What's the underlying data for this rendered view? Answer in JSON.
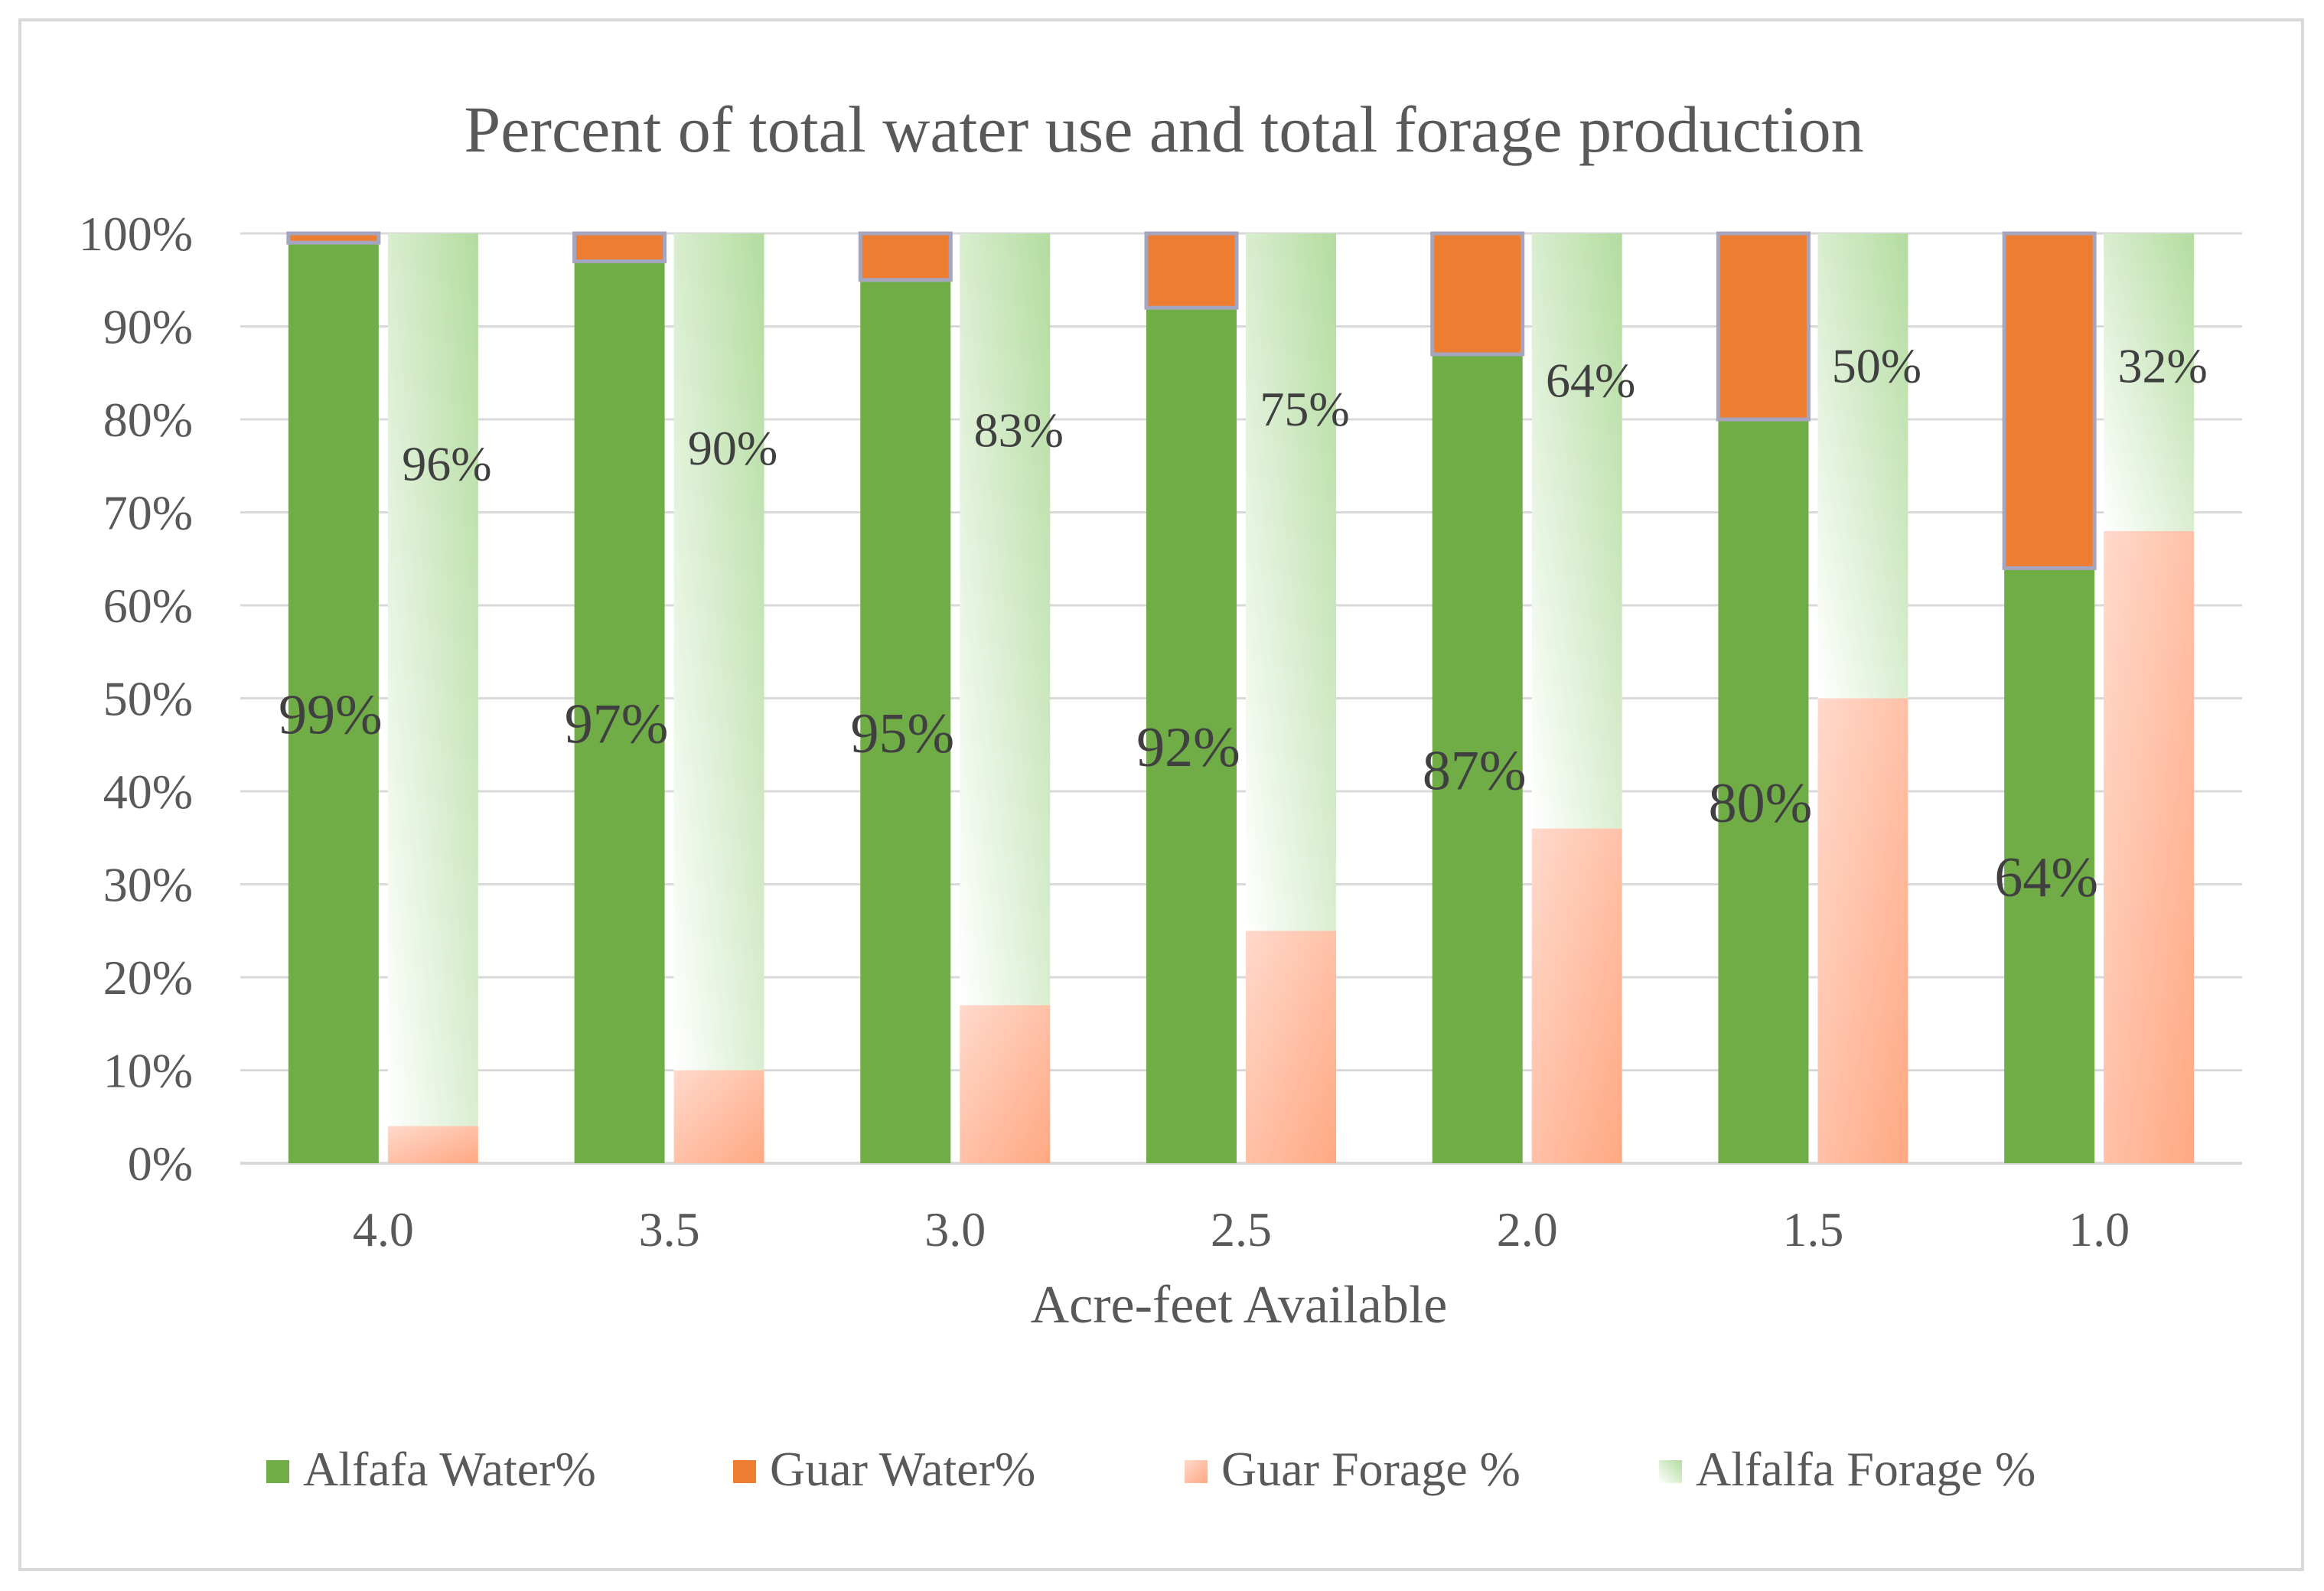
{
  "chart_data": {
    "type": "bar",
    "stacked": true,
    "percent_stacked": true,
    "title": "Percent of total water use and total forage production",
    "xlabel": "Acre-feet Available",
    "ylabel": "",
    "ylim": [
      0,
      100
    ],
    "yticks": [
      "0%",
      "10%",
      "20%",
      "30%",
      "40%",
      "50%",
      "60%",
      "70%",
      "80%",
      "90%",
      "100%"
    ],
    "categories": [
      "4.0",
      "3.5",
      "3.0",
      "2.5",
      "2.0",
      "1.5",
      "1.0"
    ],
    "stacks": [
      {
        "name": "Water",
        "series": [
          {
            "name": "Alfafa Water%",
            "values": [
              99,
              97,
              95,
              92,
              87,
              80,
              64
            ],
            "color": "#70ad47",
            "labels": [
              "99%",
              "97%",
              "95%",
              "92%",
              "87%",
              "80%",
              "64%"
            ]
          },
          {
            "name": "Guar Water%",
            "values": [
              1,
              3,
              5,
              8,
              13,
              20,
              36
            ],
            "color": "#ed7d31"
          }
        ]
      },
      {
        "name": "Forage",
        "series": [
          {
            "name": "Guar Forage %",
            "values": [
              4,
              10,
              17,
              25,
              36,
              50,
              68
            ],
            "color": "#ffc5b0"
          },
          {
            "name": "Alfalfa Forage %",
            "values": [
              96,
              90,
              83,
              75,
              64,
              50,
              32
            ],
            "color": "#c6e6b8",
            "labels": [
              "96%",
              "90%",
              "83%",
              "75%",
              "64%",
              "50%",
              "32%"
            ]
          }
        ]
      }
    ],
    "legend": [
      "Alfafa Water%",
      "Guar Water%",
      "Guar Forage %",
      "Alfalfa Forage %"
    ],
    "legend_position": "bottom",
    "grid": true
  }
}
